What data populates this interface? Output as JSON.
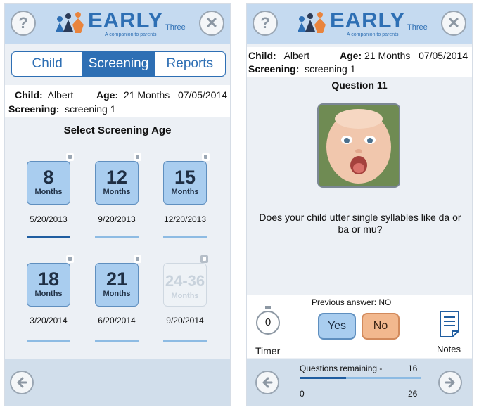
{
  "left_screen": {
    "logo": {
      "word": "EARLY",
      "suffix": "Three",
      "tagline": "A companion to parents"
    },
    "buttons": {
      "help": "?",
      "close": "✕",
      "back": "back-arrow"
    },
    "tabs": [
      {
        "label": "Child",
        "active": false
      },
      {
        "label": "Screening",
        "active": true
      },
      {
        "label": "Reports",
        "active": false
      }
    ],
    "info": {
      "child_label": "Child:",
      "child_value": "Albert",
      "age_label": "Age:",
      "age_value": "21 Months",
      "date": "07/05/2014",
      "screening_label": "Screening:",
      "screening_value": "screening 1"
    },
    "section_title": "Select Screening Age",
    "ages": [
      {
        "number": "8",
        "unit": "Months",
        "date": "5/20/2013",
        "selected": true,
        "enabled": true
      },
      {
        "number": "12",
        "unit": "Months",
        "date": "9/20/2013",
        "selected": false,
        "enabled": true
      },
      {
        "number": "15",
        "unit": "Months",
        "date": "12/20/2013",
        "selected": false,
        "enabled": true
      },
      {
        "number": "18",
        "unit": "Months",
        "date": "3/20/2014",
        "selected": false,
        "enabled": true
      },
      {
        "number": "21",
        "unit": "Months",
        "date": "6/20/2014",
        "selected": false,
        "enabled": true
      },
      {
        "number": "24-36",
        "unit": "Months",
        "date": "9/20/2014",
        "selected": false,
        "enabled": false
      }
    ]
  },
  "right_screen": {
    "logo": {
      "word": "EARLY",
      "suffix": "Three",
      "tagline": "A companion to parents"
    },
    "buttons": {
      "help": "?",
      "close": "✕"
    },
    "info": {
      "child_label": "Child:",
      "child_value": "Albert",
      "age_label": "Age:",
      "age_value": "21 Months",
      "date": "07/05/2014",
      "screening_label": "Screening:",
      "screening_value": "screening 1"
    },
    "question_title": "Question 11",
    "question_text": "Does your child utter single syllables like da or ba or mu?",
    "previous_answer": "Previous answer:  NO",
    "timer_value": "0",
    "timer_label": "Timer",
    "yes_label": "Yes",
    "no_label": "No",
    "notes_label": "Notes",
    "progress": {
      "label": "Questions remaining -",
      "remaining": "16",
      "min": "0",
      "max": "26",
      "fraction_complete": 0.385
    }
  },
  "colors": {
    "accent": "#2e6fb4",
    "header_bg": "#c5daf0",
    "tile_bg": "#a9cdef",
    "no_bg": "#f2b88e"
  }
}
